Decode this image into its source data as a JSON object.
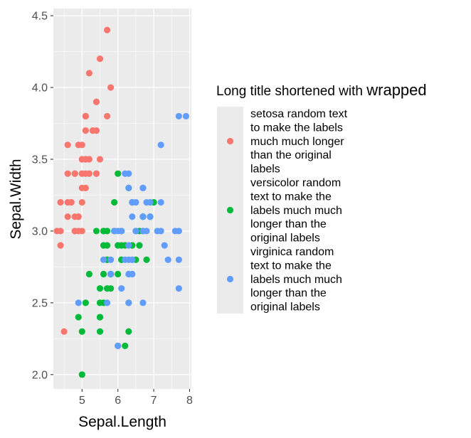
{
  "chart_data": {
    "type": "scatter",
    "xlabel": "Sepal.Length",
    "ylabel": "Sepal.Width",
    "xlim": [
      4.2,
      8.05
    ],
    "ylim": [
      1.9,
      4.55
    ],
    "x_ticks": [
      5,
      6,
      7,
      8
    ],
    "y_ticks": [
      2.0,
      2.5,
      3.0,
      3.5,
      4.0,
      4.5
    ],
    "x_tick_labels": [
      "5",
      "6",
      "7",
      "8"
    ],
    "y_tick_labels": [
      "2.0",
      "2.5",
      "3.0",
      "3.5",
      "4.0",
      "4.5"
    ],
    "grid": true,
    "legend": {
      "position": "right",
      "title_part1": "Long title shortened with ",
      "title_part2": "wrapped",
      "entries": [
        {
          "key": "setosa",
          "color": "#F8766D",
          "lines": [
            "setosa random text",
            "to make the labels",
            "much much longer",
            "than the original",
            "labels"
          ]
        },
        {
          "key": "versicolor",
          "color": "#00BA38",
          "lines": [
            "versicolor random",
            "text to make the",
            "labels much much",
            "longer than the",
            "original labels"
          ]
        },
        {
          "key": "virginica",
          "color": "#619CFF",
          "lines": [
            "virginica random",
            "text to make the",
            "labels much much",
            "longer than the",
            "original labels"
          ]
        }
      ]
    },
    "series": [
      {
        "key": "setosa",
        "color": "#F8766D",
        "points": [
          [
            5.1,
            3.5
          ],
          [
            4.9,
            3.0
          ],
          [
            4.7,
            3.2
          ],
          [
            4.6,
            3.1
          ],
          [
            5.0,
            3.6
          ],
          [
            5.4,
            3.9
          ],
          [
            4.6,
            3.4
          ],
          [
            5.0,
            3.4
          ],
          [
            4.4,
            2.9
          ],
          [
            4.9,
            3.1
          ],
          [
            5.4,
            3.7
          ],
          [
            4.8,
            3.4
          ],
          [
            4.8,
            3.0
          ],
          [
            4.3,
            3.0
          ],
          [
            5.8,
            4.0
          ],
          [
            5.7,
            4.4
          ],
          [
            5.4,
            3.9
          ],
          [
            5.1,
            3.5
          ],
          [
            5.7,
            3.8
          ],
          [
            5.1,
            3.8
          ],
          [
            5.4,
            3.4
          ],
          [
            5.1,
            3.7
          ],
          [
            4.6,
            3.6
          ],
          [
            5.1,
            3.3
          ],
          [
            4.8,
            3.4
          ],
          [
            5.0,
            3.0
          ],
          [
            5.0,
            3.4
          ],
          [
            5.2,
            3.5
          ],
          [
            5.2,
            3.4
          ],
          [
            4.7,
            3.2
          ],
          [
            4.8,
            3.1
          ],
          [
            5.4,
            3.4
          ],
          [
            5.2,
            4.1
          ],
          [
            5.5,
            4.2
          ],
          [
            4.9,
            3.1
          ],
          [
            5.0,
            3.2
          ],
          [
            5.5,
            3.5
          ],
          [
            4.9,
            3.6
          ],
          [
            4.4,
            3.0
          ],
          [
            5.1,
            3.4
          ],
          [
            5.0,
            3.5
          ],
          [
            4.5,
            2.3
          ],
          [
            4.4,
            3.2
          ],
          [
            5.0,
            3.5
          ],
          [
            5.1,
            3.8
          ],
          [
            4.8,
            3.0
          ],
          [
            5.1,
            3.8
          ],
          [
            4.6,
            3.2
          ],
          [
            5.3,
            3.7
          ],
          [
            5.0,
            3.3
          ]
        ]
      },
      {
        "key": "versicolor",
        "color": "#00BA38",
        "points": [
          [
            7.0,
            3.2
          ],
          [
            6.4,
            3.2
          ],
          [
            6.9,
            3.1
          ],
          [
            5.5,
            2.3
          ],
          [
            6.5,
            2.8
          ],
          [
            5.7,
            2.8
          ],
          [
            6.3,
            3.3
          ],
          [
            4.9,
            2.4
          ],
          [
            6.6,
            2.9
          ],
          [
            5.2,
            2.7
          ],
          [
            5.0,
            2.0
          ],
          [
            5.9,
            3.0
          ],
          [
            6.0,
            2.2
          ],
          [
            6.1,
            2.9
          ],
          [
            5.6,
            2.9
          ],
          [
            6.7,
            3.1
          ],
          [
            5.6,
            3.0
          ],
          [
            5.8,
            2.7
          ],
          [
            6.2,
            2.2
          ],
          [
            5.6,
            2.5
          ],
          [
            5.9,
            3.2
          ],
          [
            6.1,
            2.8
          ],
          [
            6.3,
            2.5
          ],
          [
            6.1,
            2.8
          ],
          [
            6.4,
            2.9
          ],
          [
            6.6,
            3.0
          ],
          [
            6.8,
            2.8
          ],
          [
            6.7,
            3.0
          ],
          [
            6.0,
            2.9
          ],
          [
            5.7,
            2.6
          ],
          [
            5.5,
            2.4
          ],
          [
            5.5,
            2.4
          ],
          [
            5.8,
            2.7
          ],
          [
            6.0,
            2.7
          ],
          [
            5.4,
            3.0
          ],
          [
            6.0,
            3.4
          ],
          [
            6.7,
            3.1
          ],
          [
            6.3,
            2.3
          ],
          [
            5.6,
            3.0
          ],
          [
            5.5,
            2.5
          ],
          [
            5.5,
            2.6
          ],
          [
            6.1,
            3.0
          ],
          [
            5.8,
            2.6
          ],
          [
            5.0,
            2.3
          ],
          [
            5.6,
            2.7
          ],
          [
            5.7,
            3.0
          ],
          [
            5.7,
            2.9
          ],
          [
            6.2,
            2.9
          ],
          [
            5.1,
            2.5
          ],
          [
            5.7,
            2.8
          ]
        ]
      },
      {
        "key": "virginica",
        "color": "#619CFF",
        "points": [
          [
            6.3,
            3.3
          ],
          [
            5.8,
            2.7
          ],
          [
            7.1,
            3.0
          ],
          [
            6.3,
            2.9
          ],
          [
            6.5,
            3.0
          ],
          [
            7.6,
            3.0
          ],
          [
            4.9,
            2.5
          ],
          [
            7.3,
            2.9
          ],
          [
            6.7,
            2.5
          ],
          [
            7.2,
            3.6
          ],
          [
            6.5,
            3.2
          ],
          [
            6.4,
            2.7
          ],
          [
            6.8,
            3.0
          ],
          [
            5.7,
            2.5
          ],
          [
            5.8,
            2.8
          ],
          [
            6.4,
            3.2
          ],
          [
            6.5,
            3.0
          ],
          [
            7.7,
            3.8
          ],
          [
            7.7,
            2.6
          ],
          [
            6.0,
            2.2
          ],
          [
            6.9,
            3.2
          ],
          [
            5.6,
            2.8
          ],
          [
            7.7,
            2.8
          ],
          [
            6.3,
            2.7
          ],
          [
            6.7,
            3.3
          ],
          [
            7.2,
            3.2
          ],
          [
            6.2,
            2.8
          ],
          [
            6.1,
            3.0
          ],
          [
            6.4,
            2.8
          ],
          [
            7.2,
            3.0
          ],
          [
            7.4,
            2.8
          ],
          [
            7.9,
            3.8
          ],
          [
            6.4,
            2.8
          ],
          [
            6.3,
            2.8
          ],
          [
            6.1,
            2.6
          ],
          [
            7.7,
            3.0
          ],
          [
            6.3,
            3.4
          ],
          [
            6.4,
            3.1
          ],
          [
            6.0,
            3.0
          ],
          [
            6.9,
            3.1
          ],
          [
            6.7,
            3.1
          ],
          [
            6.9,
            3.1
          ],
          [
            5.8,
            2.7
          ],
          [
            6.8,
            3.2
          ],
          [
            6.7,
            3.3
          ],
          [
            6.7,
            3.0
          ],
          [
            6.3,
            2.5
          ],
          [
            6.5,
            3.0
          ],
          [
            6.2,
            3.4
          ],
          [
            5.9,
            3.0
          ]
        ]
      }
    ]
  }
}
